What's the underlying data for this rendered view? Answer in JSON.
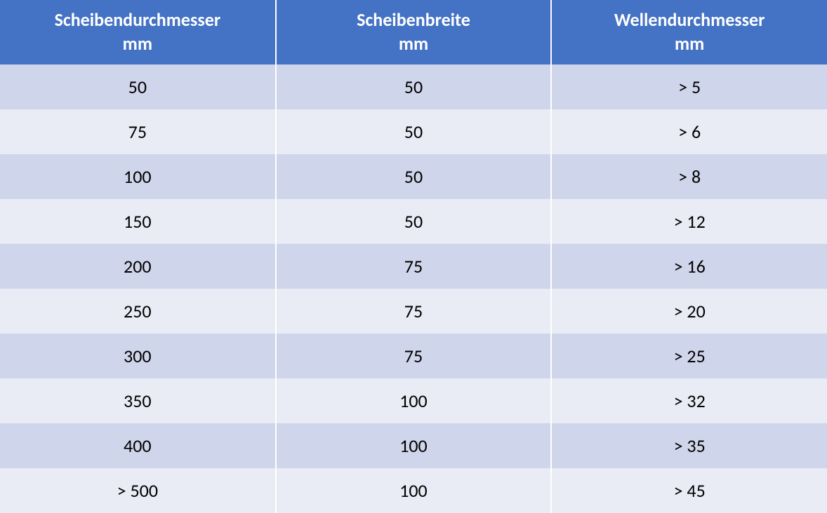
{
  "table": {
    "header_bg_color": "#4472c4",
    "header_text_color": "#ffffff",
    "row_odd_color": "#cfd5ea",
    "row_even_color": "#e9ebf5",
    "border_color": "#ffffff",
    "body_text_color": "#000000",
    "header_fontsize": 26,
    "body_fontsize": 26,
    "columns": [
      {
        "line1": "Scheibendurchmesser",
        "line2": "mm"
      },
      {
        "line1": "Scheibenbreite",
        "line2": "mm"
      },
      {
        "line1": "Wellendurchmesser",
        "line2": "mm"
      }
    ],
    "rows": [
      [
        "50",
        "50",
        "> 5"
      ],
      [
        "75",
        "50",
        "> 6"
      ],
      [
        "100",
        "50",
        "> 8"
      ],
      [
        "150",
        "50",
        "> 12"
      ],
      [
        "200",
        "75",
        "> 16"
      ],
      [
        "250",
        "75",
        "> 20"
      ],
      [
        "300",
        "75",
        "> 25"
      ],
      [
        "350",
        "100",
        "> 32"
      ],
      [
        "400",
        "100",
        "> 35"
      ],
      [
        "> 500",
        "100",
        "> 45"
      ]
    ]
  }
}
